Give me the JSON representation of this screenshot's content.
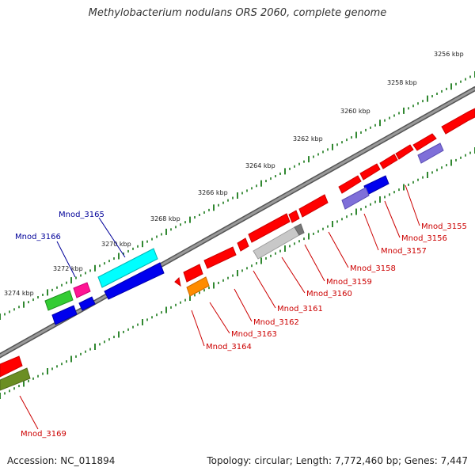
{
  "title": "Methylobacterium nodulans ORS 2060, complete genome",
  "accession": "Accession: NC_011894",
  "genome_info": "Topology: circular; Length: 7,772,460 bp; Genes: 7,447",
  "colors": {
    "backbone": "#808080",
    "ticks": "#1a7a1a",
    "label_red": "#cc0000",
    "label_blue": "#000099"
  },
  "scale_labels": [
    "3256 kbp",
    "3258 kbp",
    "3260 kbp",
    "3262 kbp",
    "3264 kbp",
    "3266 kbp",
    "3268 kbp",
    "3270 kbp",
    "3272 kbp",
    "3274 kbp"
  ],
  "gene_labels": [
    {
      "text": "Mnod_3155",
      "color": "red"
    },
    {
      "text": "Mnod_3156",
      "color": "red"
    },
    {
      "text": "Mnod_3157",
      "color": "red"
    },
    {
      "text": "Mnod_3158",
      "color": "red"
    },
    {
      "text": "Mnod_3159",
      "color": "red"
    },
    {
      "text": "Mnod_3160",
      "color": "red"
    },
    {
      "text": "Mnod_3161",
      "color": "red"
    },
    {
      "text": "Mnod_3162",
      "color": "red"
    },
    {
      "text": "Mnod_3163",
      "color": "red"
    },
    {
      "text": "Mnod_3164",
      "color": "red"
    },
    {
      "text": "Mnod_3165",
      "color": "blue"
    },
    {
      "text": "Mnod_3166",
      "color": "blue"
    },
    {
      "text": "Mnod_3169",
      "color": "red"
    }
  ]
}
